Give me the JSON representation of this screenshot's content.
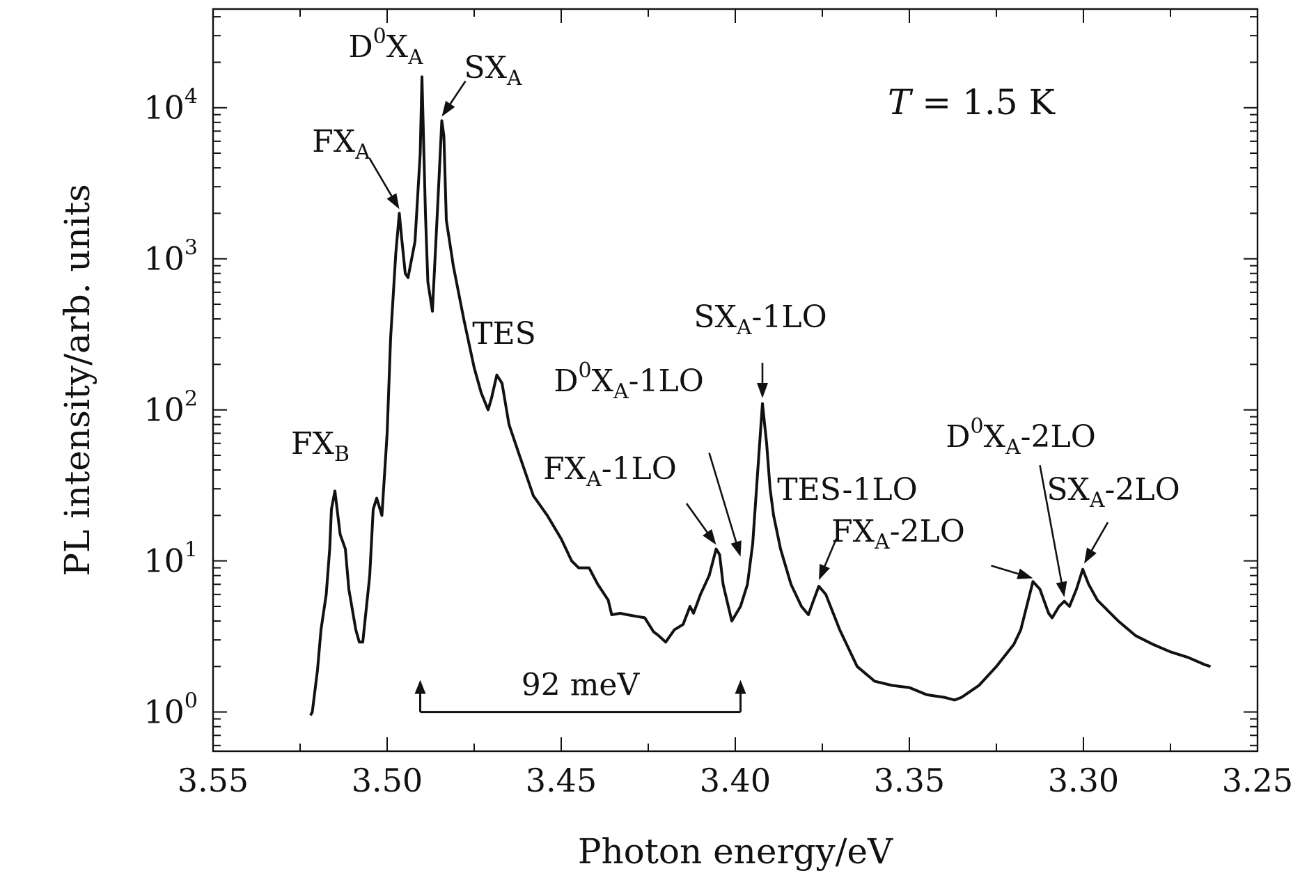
{
  "chart_data": {
    "type": "line",
    "xlabel": "Photon energy/eV",
    "ylabel": "PL intensity/arb. units",
    "x_reversed": true,
    "xlim": [
      3.55,
      3.25
    ],
    "x_ticks": [
      "3.55",
      "3.50",
      "3.45",
      "3.40",
      "3.35",
      "3.30",
      "3.25"
    ],
    "y_scale": "log",
    "ylim": [
      0.55,
      45000
    ],
    "y_ticks": [
      {
        "base": "10",
        "exp": "0"
      },
      {
        "base": "10",
        "exp": "1"
      },
      {
        "base": "10",
        "exp": "2"
      },
      {
        "base": "10",
        "exp": "3"
      },
      {
        "base": "10",
        "exp": "4"
      }
    ],
    "condition": {
      "var": "T",
      "text": " = 1.5 K"
    },
    "series": [
      {
        "x": [
          3.522,
          3.5215,
          3.52,
          3.519,
          3.5175,
          3.5165,
          3.516,
          3.515,
          3.5135,
          3.512,
          3.511,
          3.509,
          3.508,
          3.507,
          3.505,
          3.504,
          3.503,
          3.5015,
          3.5,
          3.499,
          3.4975,
          3.4965,
          3.496,
          3.4948,
          3.494,
          3.492,
          3.4905,
          3.49,
          3.489,
          3.4883,
          3.487,
          3.4855,
          3.4843,
          3.4837,
          3.483,
          3.481,
          3.478,
          3.475,
          3.473,
          3.471,
          3.47,
          3.4685,
          3.467,
          3.465,
          3.462,
          3.458,
          3.454,
          3.45,
          3.447,
          3.445,
          3.442,
          3.4395,
          3.4365,
          3.4355,
          3.433,
          3.431,
          3.4285,
          3.426,
          3.4235,
          3.422,
          3.42,
          3.4175,
          3.415,
          3.413,
          3.412,
          3.41,
          3.4075,
          3.4055,
          3.4045,
          3.4035,
          3.401,
          3.3985,
          3.3965,
          3.395,
          3.393,
          3.3922,
          3.391,
          3.39,
          3.389,
          3.387,
          3.384,
          3.381,
          3.379,
          3.3775,
          3.376,
          3.374,
          3.37,
          3.365,
          3.36,
          3.355,
          3.35,
          3.345,
          3.34,
          3.337,
          3.335,
          3.33,
          3.325,
          3.32,
          3.318,
          3.3145,
          3.3125,
          3.31,
          3.309,
          3.307,
          3.3055,
          3.304,
          3.302,
          3.3002,
          3.2985,
          3.296,
          3.29,
          3.285,
          3.28,
          3.275,
          3.27,
          3.265,
          3.2635
        ],
        "y": [
          0.95,
          1.0,
          1.9,
          3.5,
          6.0,
          12.0,
          22.0,
          29.0,
          15.0,
          12.0,
          6.5,
          3.5,
          2.9,
          2.9,
          8.0,
          22.0,
          26.0,
          20.0,
          70.0,
          300.0,
          1100.0,
          2000.0,
          1500.0,
          800.0,
          750.0,
          1300.0,
          5000.0,
          16000.0,
          2000.0,
          700.0,
          450.0,
          2200.0,
          8200.0,
          6500.0,
          1800.0,
          900.0,
          400.0,
          190.0,
          130.0,
          100.0,
          120.0,
          170.0,
          150.0,
          80.0,
          50.0,
          27.0,
          20.0,
          14.0,
          10.0,
          9.0,
          9.0,
          7.0,
          5.5,
          4.4,
          4.5,
          4.4,
          4.3,
          4.2,
          3.4,
          3.2,
          2.9,
          3.5,
          3.8,
          5.0,
          4.5,
          6.0,
          8.0,
          12.0,
          11.0,
          7.0,
          4.0,
          5.0,
          7.0,
          13.0,
          60.0,
          110.0,
          60.0,
          30.0,
          20.0,
          12.0,
          7.0,
          5.0,
          4.4,
          5.5,
          6.8,
          6.0,
          3.5,
          2.0,
          1.6,
          1.5,
          1.45,
          1.3,
          1.25,
          1.2,
          1.25,
          1.5,
          2.0,
          2.8,
          3.5,
          7.3,
          6.5,
          4.5,
          4.2,
          5.0,
          5.4,
          5.0,
          6.5,
          8.8,
          7.0,
          5.5,
          4.0,
          3.2,
          2.8,
          2.5,
          2.3,
          2.05,
          2.0
        ]
      }
    ],
    "annotations": [
      {
        "id": "fxb",
        "base": "FX",
        "sub": "B",
        "suffix": "",
        "x": 3.515,
        "y": 29
      },
      {
        "id": "fxa",
        "base": "FX",
        "sub": "A",
        "suffix": "",
        "x": 3.4965,
        "y": 2000,
        "arrow_from": [
          3.505,
          4600
        ]
      },
      {
        "id": "d0xa",
        "base": "D",
        "sup": "0",
        "mid": "X",
        "sub": "A",
        "suffix": "",
        "x": 3.4905,
        "y": 16000
      },
      {
        "id": "sxa",
        "base": "SX",
        "sub": "A",
        "suffix": "",
        "x": 3.4843,
        "y": 8200,
        "arrow_from": [
          3.4775,
          15000
        ]
      },
      {
        "id": "tes",
        "base": "TES",
        "sub": "",
        "suffix": "",
        "x": 3.4685,
        "y": 170
      },
      {
        "id": "fxa-1lo",
        "base": "FX",
        "sub": "A",
        "suffix": "-1LO",
        "x": 3.4055,
        "y": 12,
        "arrow_from": [
          3.414,
          24
        ]
      },
      {
        "id": "d0xa-1lo",
        "base": "D",
        "sup": "0",
        "mid": "X",
        "sub": "A",
        "suffix": "-1LO",
        "x": 3.3985,
        "y": 10,
        "arrow_from": [
          3.4075,
          52
        ]
      },
      {
        "id": "sxa-1lo",
        "base": "SX",
        "sub": "A",
        "suffix": "-1LO",
        "x": 3.3922,
        "y": 112,
        "arrow_from": [
          3.3922,
          205
        ]
      },
      {
        "id": "tes-1lo",
        "base": "TES",
        "sub": "",
        "suffix": "-1LO",
        "x": 3.376,
        "y": 7,
        "arrow_from": [
          3.371,
          14
        ]
      },
      {
        "id": "fxa-2lo",
        "base": "FX",
        "sub": "A",
        "suffix": "-2LO",
        "x": 3.3145,
        "y": 7.2,
        "arrow_from": [
          3.3265,
          9.3
        ]
      },
      {
        "id": "d0xa-2lo",
        "base": "D",
        "sup": "0",
        "mid": "X",
        "sub": "A",
        "suffix": "-2LO",
        "x": 3.3055,
        "y": 5.4,
        "arrow_from": [
          3.3125,
          43
        ]
      },
      {
        "id": "sxa-2lo",
        "base": "SX",
        "sub": "A",
        "suffix": "-2LO",
        "x": 3.2998,
        "y": 9,
        "arrow_from": [
          3.293,
          18
        ]
      }
    ],
    "span": {
      "label": "92 meV",
      "x1": 3.4905,
      "x2": 3.3985,
      "y": 1.0
    }
  }
}
